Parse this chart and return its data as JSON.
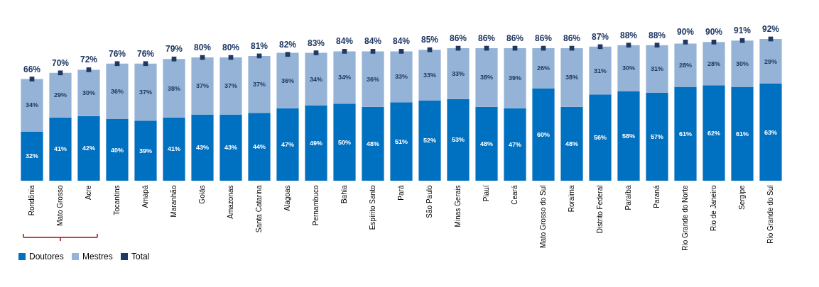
{
  "chart_data": {
    "type": "bar",
    "stacked": true,
    "legend": "bottom",
    "grid": false,
    "categories": [
      "Rondônia",
      "Mato Grosso",
      "Acre",
      "Tocantins",
      "Amapá",
      "Maranhão",
      "Goiás",
      "Amazonas",
      "Santa Catarina",
      "Alagoas",
      "Pernambuco",
      "Bahia",
      "Espírito Santo",
      "Pará",
      "São Paulo",
      "Minas Gerais",
      "Piauí",
      "Ceará",
      "Mato Grosso do Sul",
      "Roraima",
      "Distrito Federal",
      "Paraíba",
      "Paraná",
      "Rio Grande do Norte",
      "Rio de Janeiro",
      "Sergipe",
      "Rio Grande do Sul"
    ],
    "series": [
      {
        "name": "Doutores",
        "color": "#0070c0",
        "values": [
          32,
          41,
          42,
          40,
          39,
          41,
          43,
          43,
          44,
          47,
          49,
          50,
          48,
          51,
          52,
          53,
          48,
          47,
          60,
          48,
          56,
          58,
          57,
          61,
          62,
          61,
          63
        ],
        "value_labels": [
          "32%",
          "41%",
          "42%",
          "40%",
          "39%",
          "41%",
          "43%",
          "43%",
          "44%",
          "47%",
          "49%",
          "50%",
          "48%",
          "51%",
          "52%",
          "53%",
          "48%",
          "47%",
          "60%",
          "48%",
          "56%",
          "58%",
          "57%",
          "61%",
          "62%",
          "61%",
          "63%"
        ]
      },
      {
        "name": "Mestres",
        "color": "#95b3d7",
        "values": [
          34,
          29,
          30,
          36,
          37,
          38,
          37,
          37,
          37,
          36,
          34,
          34,
          36,
          33,
          33,
          33,
          38,
          39,
          26,
          38,
          31,
          30,
          31,
          28,
          28,
          30,
          29
        ],
        "value_labels": [
          "34%",
          "29%",
          "30%",
          "36%",
          "37%",
          "38%",
          "37%",
          "37%",
          "37%",
          "36%",
          "34%",
          "34%",
          "36%",
          "33%",
          "33%",
          "33%",
          "38%",
          "39%",
          "26%",
          "38%",
          "31%",
          "30%",
          "31%",
          "28%",
          "28%",
          "30%",
          "29%"
        ]
      },
      {
        "name": "Total",
        "type": "scatter",
        "marker": "square",
        "color": "#1f3864",
        "values": [
          66,
          70,
          72,
          76,
          76,
          79,
          80,
          80,
          81,
          82,
          83,
          84,
          84,
          84,
          85,
          86,
          86,
          86,
          86,
          86,
          87,
          88,
          88,
          90,
          90,
          91,
          92
        ],
        "value_labels": [
          "66%",
          "70%",
          "72%",
          "76%",
          "76%",
          "79%",
          "80%",
          "80%",
          "81%",
          "82%",
          "83%",
          "84%",
          "84%",
          "84%",
          "85%",
          "86%",
          "86%",
          "86%",
          "86%",
          "86%",
          "87%",
          "88%",
          "88%",
          "90%",
          "90%",
          "91%",
          "92%"
        ]
      }
    ]
  }
}
